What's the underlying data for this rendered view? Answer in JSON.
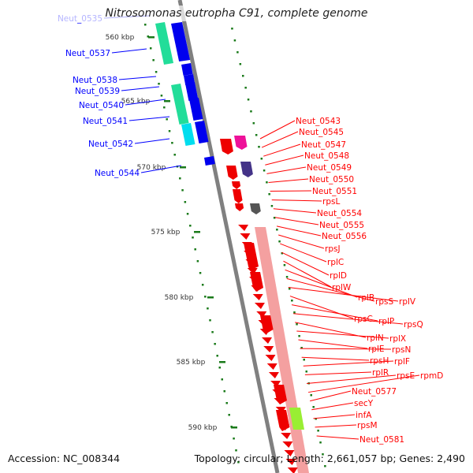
{
  "title": "Nitrosomonas eutropha C91, complete genome",
  "footer": {
    "accession": "Accession: NC_008344",
    "info": "Topology: circular; Length: 2,661,057 bp; Genes: 2,490"
  },
  "ticks": [
    "560 kbp",
    "565 kbp",
    "570 kbp",
    "575 kbp",
    "580 kbp",
    "585 kbp",
    "590 kbp"
  ],
  "left_labels": [
    "Neut_0535",
    "Neut_0537",
    "Neut_0538",
    "Neut_0539",
    "Neut_0540",
    "Neut_0541",
    "Neut_0542",
    "Neut_0544"
  ],
  "right_labels": [
    "Neut_0543",
    "Neut_0545",
    "Neut_0547",
    "Neut_0548",
    "Neut_0549",
    "Neut_0550",
    "Neut_0551",
    "rpsL",
    "Neut_0554",
    "Neut_0555",
    "Neut_0556",
    "rpsJ",
    "rplC",
    "rplD",
    "rplW",
    "rplB",
    "rpsS",
    "rplV",
    "rpsC",
    "rplP",
    "rpsQ",
    "rplN",
    "rplX",
    "rplE",
    "rpsN",
    "rpsH",
    "rplF",
    "rplR",
    "rpsE",
    "rpmD",
    "Neut_0577",
    "secY",
    "infA",
    "rpsM",
    "Neut_0581"
  ],
  "colors": {
    "forward": "#0000ff",
    "reverse": "#ff0000",
    "backbone": "#808080",
    "ticks": "#1a7a1a",
    "rrna_band": "#f08080",
    "highlight": "#99ee33"
  }
}
